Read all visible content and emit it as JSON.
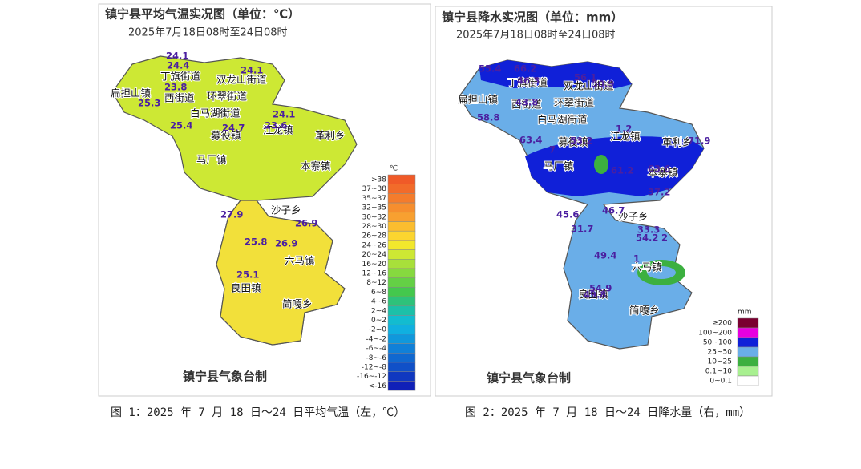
{
  "figure1": {
    "title": "镇宁县平均气温实况图（单位：℃）",
    "subtitle": "2025年7月18日08时至24日08时",
    "unit": "℃",
    "legend": [
      {
        "label": ">38",
        "color": "#f05a28"
      },
      {
        "label": "37~38",
        "color": "#f26b2a"
      },
      {
        "label": "35~37",
        "color": "#f47c2c"
      },
      {
        "label": "32~35",
        "color": "#f68e2e"
      },
      {
        "label": "30~32",
        "color": "#f8a030"
      },
      {
        "label": "28~30",
        "color": "#fbbd2f"
      },
      {
        "label": "26~28",
        "color": "#fcd52f"
      },
      {
        "label": "24~26",
        "color": "#f2e82c"
      },
      {
        "label": "20~24",
        "color": "#cde834"
      },
      {
        "label": "16~20",
        "color": "#a8e03a"
      },
      {
        "label": "12~16",
        "color": "#86d93f"
      },
      {
        "label": "8~12",
        "color": "#64d045"
      },
      {
        "label": "6~8",
        "color": "#44c84d"
      },
      {
        "label": "4~6",
        "color": "#2ec27a"
      },
      {
        "label": "2~4",
        "color": "#1cc0a8"
      },
      {
        "label": "0~2",
        "color": "#12bcd0"
      },
      {
        "label": "-2~0",
        "color": "#10b0e0"
      },
      {
        "label": "-4~-2",
        "color": "#1098dc"
      },
      {
        "label": "-6~-4",
        "color": "#1080d8"
      },
      {
        "label": "-8~-6",
        "color": "#1068d0"
      },
      {
        "label": "-12~-8",
        "color": "#1050c8"
      },
      {
        "label": "-16~-12",
        "color": "#1038c0"
      },
      {
        "label": "<-16",
        "color": "#1020b8"
      }
    ],
    "places": [
      "丁旗街道",
      "双龙山街道",
      "扁担山镇",
      "西街道",
      "环翠街道",
      "白马湖街道",
      "募役镇",
      "江龙镇",
      "革利乡",
      "马厂镇",
      "本寨镇",
      "沙子乡",
      "六马镇",
      "良田镇",
      "简嘎乡"
    ],
    "values": [
      "24.1",
      "24.4",
      "24.1",
      "23.8",
      "25.3",
      "24.1",
      "25.4",
      "24.7",
      "23.6",
      "27.9",
      "26.9",
      "25.8",
      "26.9",
      "25.1"
    ],
    "credit": "镇宁县气象台制"
  },
  "figure2": {
    "title": "镇宁县降水实况图（单位：mm）",
    "subtitle": "2025年7月18日08时至24日08时",
    "unit": "mm",
    "legend": [
      {
        "label": "≥200",
        "color": "#7a0030"
      },
      {
        "label": "100~200",
        "color": "#e800e0"
      },
      {
        "label": "50~100",
        "color": "#1020d8"
      },
      {
        "label": "25~50",
        "color": "#6aaee8"
      },
      {
        "label": "10~25",
        "color": "#3cb040"
      },
      {
        "label": "0.1~10",
        "color": "#a8f090"
      },
      {
        "label": "0~0.1",
        "color": "#ffffff"
      }
    ],
    "places": [
      "丁旗街道",
      "双龙山街道",
      "扁担山镇",
      "西街道",
      "环翠街道",
      "白马湖街道",
      "募役镇",
      "江龙镇",
      "革利乡",
      "马厂镇",
      "本寨镇",
      "沙子乡",
      "六马镇",
      "良田镇",
      "简嘎乡"
    ],
    "values": [
      "55.4",
      "66.2",
      "46.3",
      "56.1",
      "50.9",
      "43.8",
      "58.8",
      "1.2",
      "63.4",
      "53.2",
      "7",
      "71.9",
      "61.2",
      "63.6",
      "37.2",
      "45.6",
      "46.7",
      "31.7",
      "33.3",
      "54.2",
      "2",
      "49.4",
      "1",
      "54.9",
      "49.8"
    ],
    "credit": "镇宁县气象台制"
  },
  "captions": [
    "图 1：2025 年 7 月 18 日～24 日平均气温（左，℃）",
    "图 2：2025 年 7 月 18 日～24 日降水量（右，mm）"
  ]
}
